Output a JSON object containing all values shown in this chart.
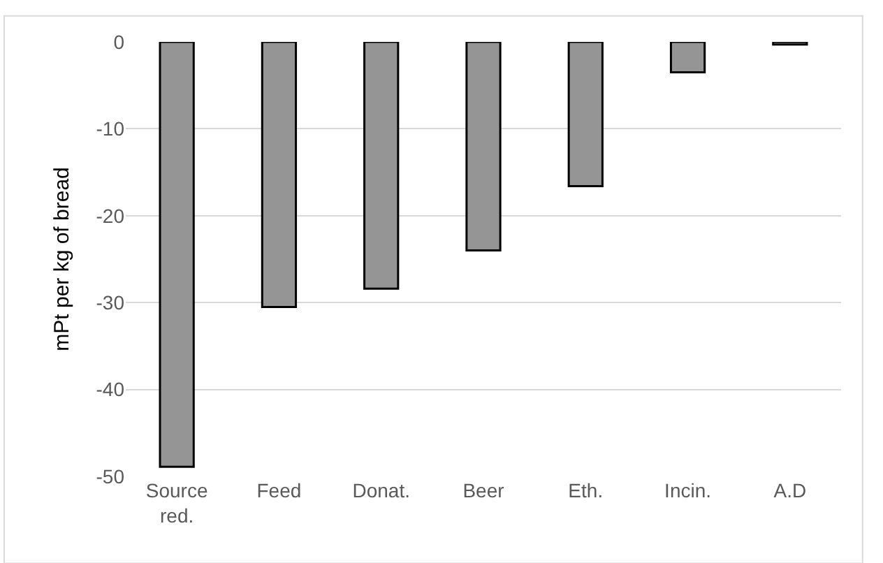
{
  "chart_data": {
    "type": "bar",
    "ylabel": "mPt per kg of bread",
    "categories": [
      "Source\nred.",
      "Feed",
      "Donat.",
      "Beer",
      "Eth.",
      "Incin.",
      "A.D"
    ],
    "values": [
      -48.9,
      -30.5,
      -28.4,
      -24.0,
      -16.6,
      -3.5,
      -0.3
    ],
    "color": "#959595",
    "ylim": [
      -50,
      0
    ],
    "yticks": [
      -50,
      -40,
      -30,
      -20,
      -10,
      0
    ],
    "grid": "y",
    "legend": false
  }
}
